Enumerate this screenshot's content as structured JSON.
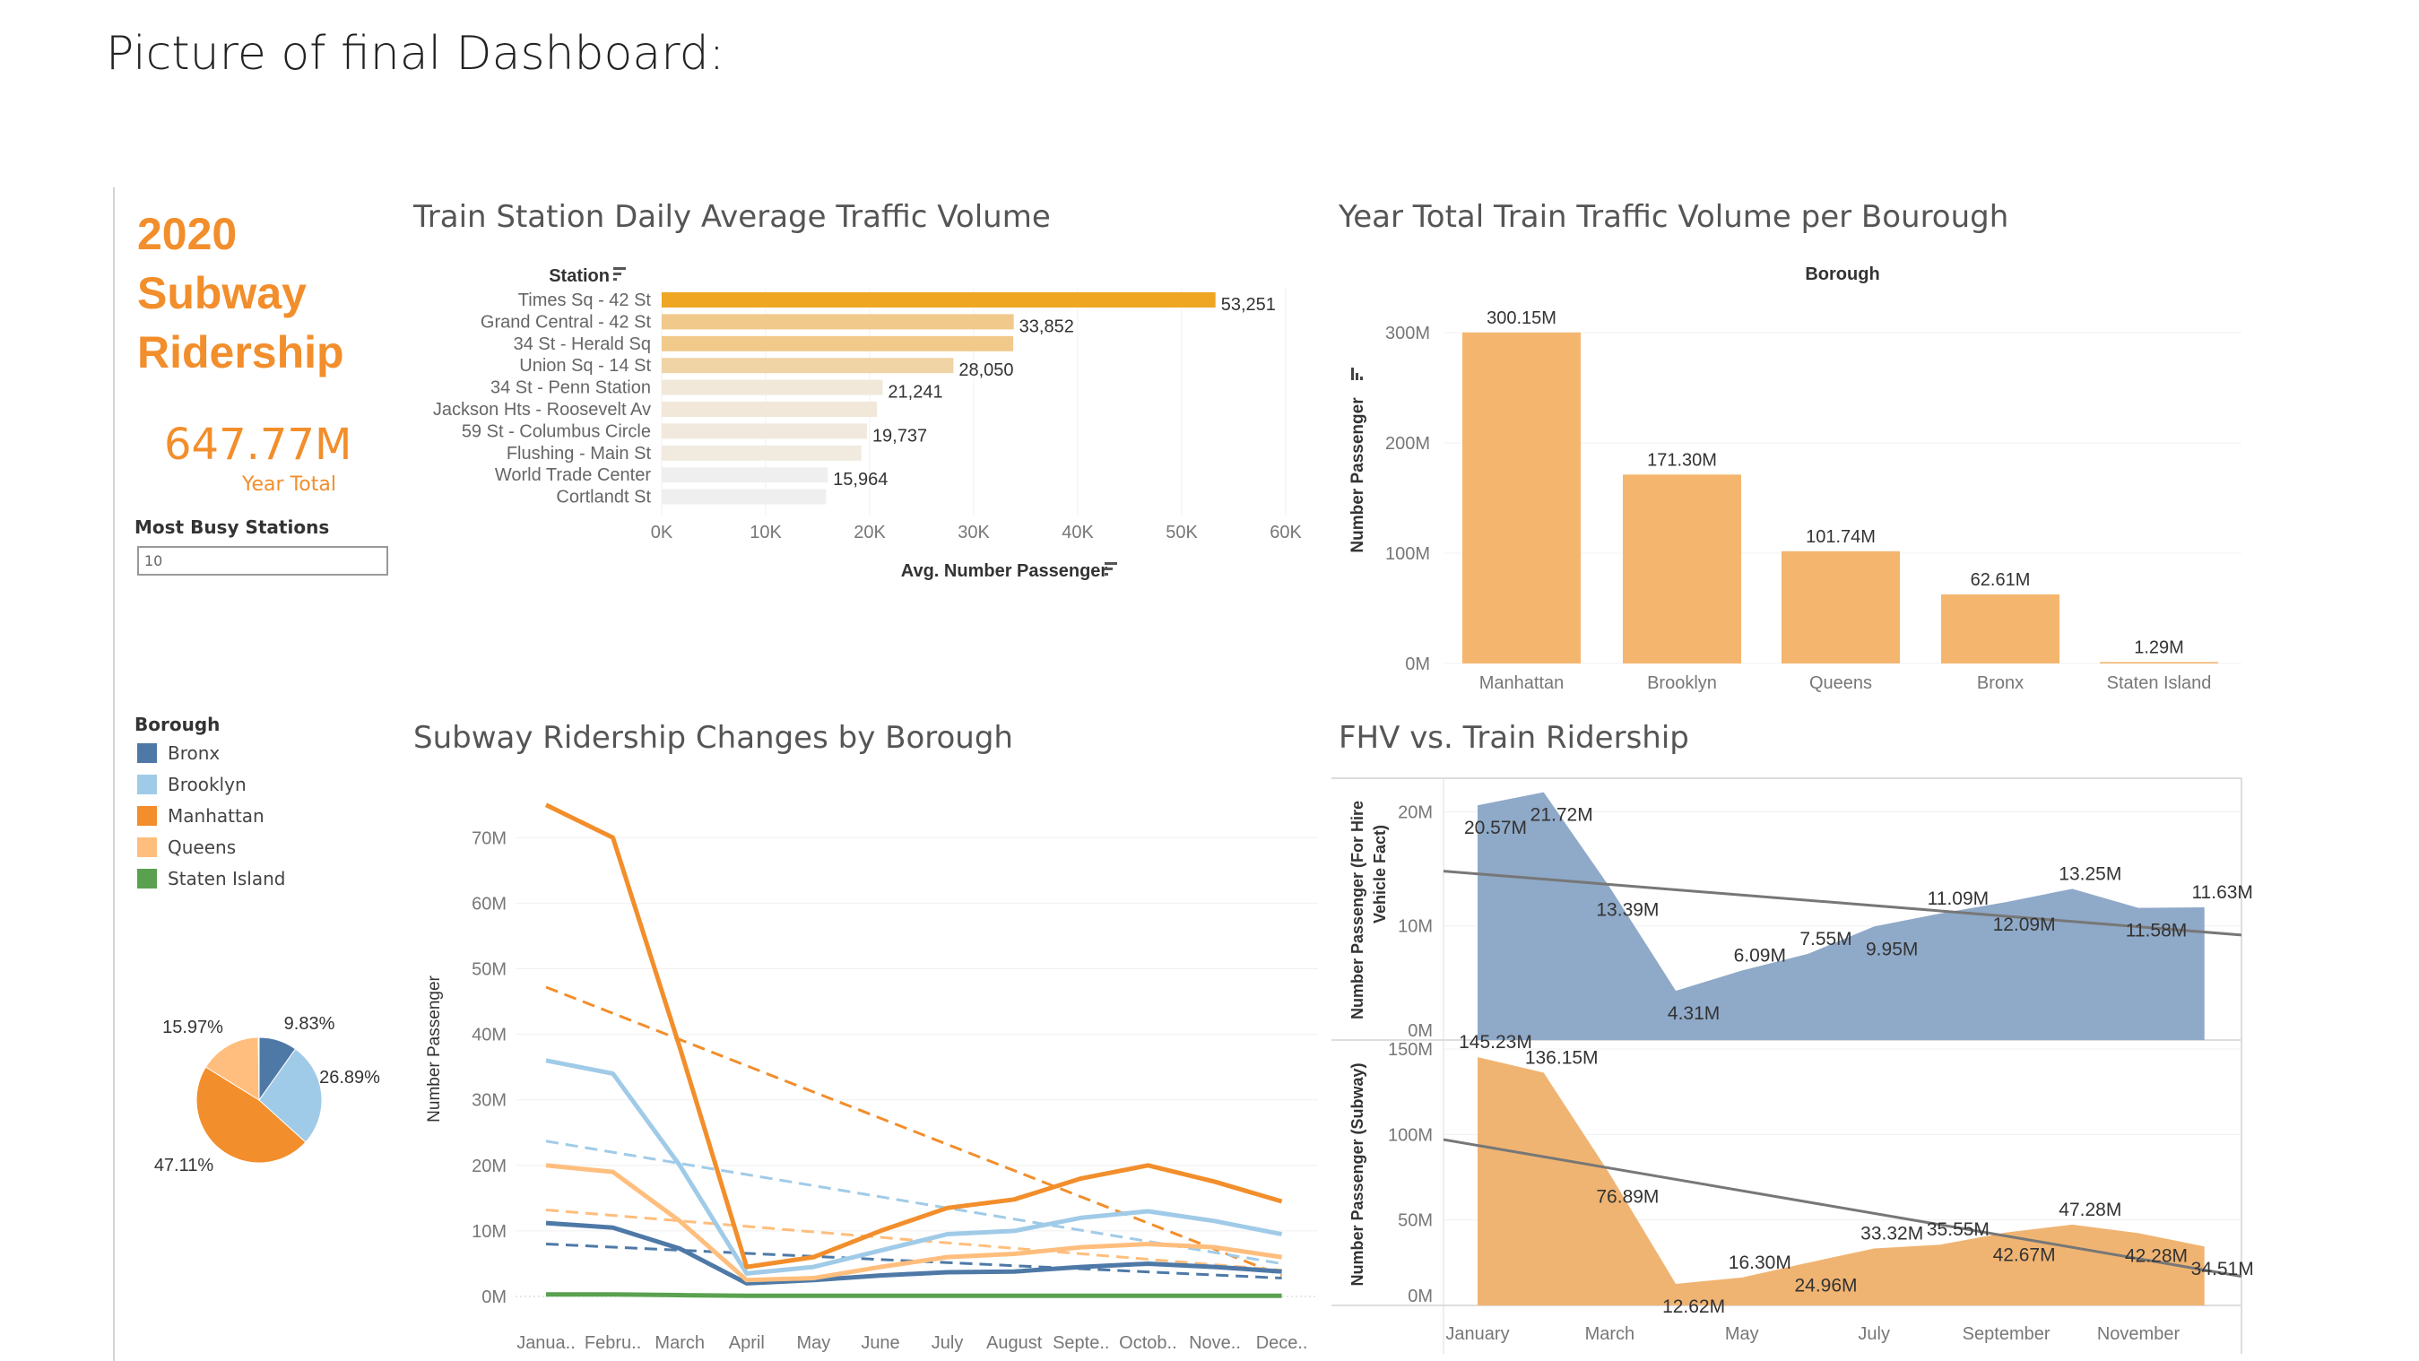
{
  "heading": "Picture of final Dashboard:",
  "sidebar": {
    "title_lines": [
      "2020",
      "Subway",
      "Ridership"
    ],
    "kpi_value": "647.77M",
    "kpi_label": "Year Total",
    "filter_label": "Most Busy Stations",
    "filter_value": "10",
    "legend_title": "Borough",
    "legend": [
      {
        "label": "Bronx",
        "color": "#4e79a7"
      },
      {
        "label": "Brooklyn",
        "color": "#a0cbe8"
      },
      {
        "label": "Manhattan",
        "color": "#f28e2b"
      },
      {
        "label": "Queens",
        "color": "#ffbe7d"
      },
      {
        "label": "Staten Island",
        "color": "#59a14f"
      }
    ]
  },
  "chart_data": [
    {
      "type": "bar",
      "orientation": "horizontal",
      "title": "Train Station Daily Average Traffic Volume",
      "ylabel": "Station",
      "xlabel": "Avg. Number Passenger",
      "xlim": [
        0,
        60000
      ],
      "xticks": [
        "0K",
        "10K",
        "20K",
        "30K",
        "40K",
        "50K",
        "60K"
      ],
      "categories": [
        "Times Sq - 42 St",
        "Grand Central - 42 St",
        "34 St - Herald Sq",
        "Union Sq - 14 St",
        "34 St - Penn Station",
        "Jackson Hts - Roosevelt Av",
        "59 St - Columbus Circle",
        "Flushing - Main St",
        "World Trade Center",
        "Cortlandt St"
      ],
      "values": [
        53251,
        33852,
        33800,
        28050,
        21241,
        20700,
        19737,
        19200,
        15964,
        15800
      ],
      "labels": [
        "53,251",
        "33,852",
        "",
        "28,050",
        "21,241",
        "",
        "19,737",
        "",
        "15,964",
        ""
      ],
      "colors": [
        "#eea623",
        "#f0c98b",
        "#f0c98b",
        "#f0d4a6",
        "#f1e8da",
        "#f1e8da",
        "#f1e9dd",
        "#f1eadf",
        "#efefef",
        "#efefef"
      ]
    },
    {
      "type": "bar",
      "title": "Year Total Train Traffic Volume per Bourough",
      "header": "Borough",
      "ylabel": "Number Passenger",
      "ylim": [
        0,
        300
      ],
      "yticks": [
        "0M",
        "100M",
        "200M",
        "300M"
      ],
      "categories": [
        "Manhattan",
        "Brooklyn",
        "Queens",
        "Bronx",
        "Staten Island"
      ],
      "values": [
        300.15,
        171.3,
        101.74,
        62.61,
        1.29
      ],
      "labels": [
        "300.15M",
        "171.30M",
        "101.74M",
        "62.61M",
        "1.29M"
      ],
      "color": "#f4b66e"
    },
    {
      "type": "pie",
      "slices": [
        {
          "name": "Bronx",
          "value": 9.83,
          "label": "9.83%",
          "color": "#4e79a7"
        },
        {
          "name": "Brooklyn",
          "value": 26.89,
          "label": "26.89%",
          "color": "#a0cbe8"
        },
        {
          "name": "Manhattan",
          "value": 47.11,
          "label": "47.11%",
          "color": "#f28e2b"
        },
        {
          "name": "Queens",
          "value": 15.97,
          "label": "15.97%",
          "color": "#ffbe7d"
        },
        {
          "name": "Staten Island",
          "value": 0.2,
          "label": "",
          "color": "#59a14f"
        }
      ]
    },
    {
      "type": "line",
      "title": "Subway Ridership Changes by Borough",
      "ylabel": "Number Passenger",
      "ylim": [
        0,
        75
      ],
      "yticks": [
        "0M",
        "10M",
        "20M",
        "30M",
        "40M",
        "50M",
        "60M",
        "70M"
      ],
      "categories": [
        "Janua..",
        "Febru..",
        "March",
        "April",
        "May",
        "June",
        "July",
        "August",
        "Septe..",
        "Octob..",
        "Nove..",
        "Dece.."
      ],
      "series": [
        {
          "name": "Manhattan",
          "color": "#f28e2b",
          "values": [
            75,
            70,
            38,
            4.5,
            6,
            10,
            13.5,
            14.8,
            18,
            20,
            17.5,
            14.5
          ],
          "trend": [
            47.2,
            3.2
          ]
        },
        {
          "name": "Brooklyn",
          "color": "#a0cbe8",
          "values": [
            36,
            34,
            20,
            3.5,
            4.5,
            7,
            9.5,
            10,
            12,
            13,
            11.5,
            9.5
          ],
          "trend": [
            23.7,
            5
          ]
        },
        {
          "name": "Queens",
          "color": "#ffbe7d",
          "values": [
            20,
            19,
            11.5,
            2.5,
            2.8,
            4.5,
            6,
            6.5,
            7.5,
            8,
            7.5,
            6
          ],
          "trend": [
            13.2,
            4
          ]
        },
        {
          "name": "Bronx",
          "color": "#4e79a7",
          "values": [
            11.2,
            10.5,
            7.3,
            2,
            2.5,
            3.2,
            3.7,
            3.8,
            4.5,
            5,
            4.5,
            3.8
          ],
          "trend": [
            8,
            2.8
          ]
        },
        {
          "name": "Staten Island",
          "color": "#59a14f",
          "values": [
            0.3,
            0.3,
            0.2,
            0.1,
            0.1,
            0.1,
            0.1,
            0.1,
            0.1,
            0.1,
            0.1,
            0.1
          ],
          "trend": null
        }
      ]
    },
    {
      "type": "area",
      "title": "FHV vs. Train Ridership",
      "categories": [
        "January",
        "February",
        "March",
        "April",
        "May",
        "June",
        "July",
        "August",
        "September",
        "October",
        "November",
        "December"
      ],
      "xtick_labels": [
        "January",
        "",
        "March",
        "",
        "May",
        "",
        "July",
        "",
        "September",
        "",
        "November",
        ""
      ],
      "panels": [
        {
          "ylabel": "Number Passenger (For Hire Vehicle Fact)",
          "ylim": [
            0,
            22
          ],
          "yticks": [
            {
              "v": 0,
              "t": "0M"
            },
            {
              "v": 10,
              "t": "10M"
            },
            {
              "v": 20,
              "t": "20M"
            }
          ],
          "color": "#8fa9c8",
          "values": [
            20.57,
            21.72,
            13.39,
            4.31,
            6.09,
            7.55,
            9.95,
            11.09,
            12.09,
            13.25,
            11.58,
            11.63
          ],
          "labels": [
            "20.57M",
            "21.72M",
            "13.39M",
            "4.31M",
            "6.09M",
            "7.55M",
            "9.95M",
            "11.09M",
            "12.09M",
            "13.25M",
            "11.58M",
            "11.63M"
          ],
          "trend": [
            14.8,
            9.2
          ]
        },
        {
          "ylabel": "Number Passenger (Subway)",
          "ylim": [
            0,
            150
          ],
          "yticks": [
            {
              "v": 0,
              "t": "0M"
            },
            {
              "v": 50,
              "t": "50M"
            },
            {
              "v": 100,
              "t": "100M"
            },
            {
              "v": 150,
              "t": "150M"
            }
          ],
          "color": "#f0b472",
          "values": [
            145.23,
            136.15,
            76.89,
            12.62,
            16.3,
            24.96,
            33.32,
            35.55,
            42.67,
            47.28,
            42.28,
            34.51
          ],
          "labels": [
            "145.23M",
            "136.15M",
            "76.89M",
            "12.62M",
            "16.30M",
            "24.96M",
            "33.32M",
            "35.55M",
            "42.67M",
            "47.28M",
            "42.28M",
            "34.51M"
          ],
          "trend": [
            97,
            17
          ]
        }
      ]
    }
  ]
}
